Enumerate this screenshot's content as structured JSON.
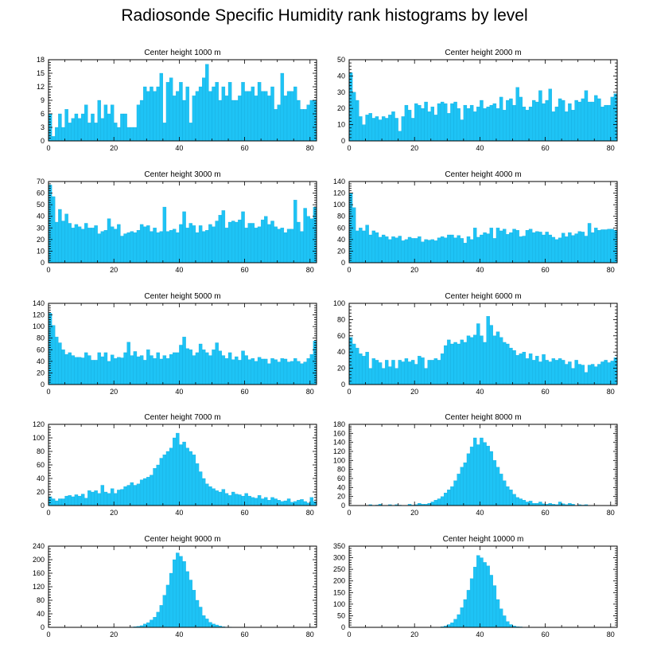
{
  "page": {
    "title": "Radiosonde Specific Humidity rank histograms by level"
  },
  "colors": {
    "bar": "#1ec3f5",
    "bar_stroke": "#0fa6d8",
    "axis": "#000000"
  },
  "chart_data": [
    {
      "type": "bar",
      "title": "Center height 1000 m",
      "xlim": [
        0,
        82
      ],
      "ylim": [
        0,
        18
      ],
      "yticks": [
        0,
        3,
        6,
        9,
        12,
        15,
        18
      ],
      "xticks": [
        0,
        20,
        40,
        60,
        80
      ],
      "values": [
        6,
        1,
        3,
        6,
        3,
        7,
        4,
        5,
        6,
        5,
        6,
        8,
        4,
        6,
        4,
        9,
        5,
        8,
        6,
        8,
        4,
        3,
        6,
        6,
        3,
        3,
        3,
        8,
        9,
        12,
        11,
        12,
        11,
        12,
        15,
        4,
        13,
        14,
        10,
        11,
        13,
        9,
        12,
        4,
        10,
        11,
        12,
        14,
        17,
        11,
        12,
        13,
        9,
        12,
        10,
        13,
        9,
        9,
        10,
        13,
        11,
        11,
        12,
        10,
        13,
        11,
        11,
        10,
        12,
        7,
        8,
        15,
        10,
        11,
        11,
        12,
        9,
        7,
        7,
        8,
        9,
        9
      ]
    },
    {
      "type": "bar",
      "title": "Center height 2000 m",
      "xlim": [
        0,
        82
      ],
      "ylim": [
        0,
        50
      ],
      "yticks": [
        0,
        10,
        20,
        30,
        40,
        50
      ],
      "xticks": [
        0,
        20,
        40,
        60,
        80
      ],
      "values": [
        42,
        30,
        25,
        15,
        10,
        16,
        17,
        14,
        15,
        13,
        15,
        14,
        16,
        18,
        14,
        6,
        15,
        22,
        19,
        14,
        23,
        22,
        20,
        24,
        18,
        21,
        16,
        23,
        24,
        23,
        17,
        23,
        24,
        20,
        13,
        22,
        20,
        22,
        18,
        21,
        25,
        20,
        21,
        22,
        23,
        20,
        27,
        19,
        25,
        26,
        22,
        33,
        27,
        21,
        19,
        21,
        25,
        24,
        31,
        23,
        25,
        32,
        18,
        21,
        26,
        25,
        18,
        23,
        19,
        25,
        24,
        26,
        31,
        24,
        24,
        28,
        26,
        21,
        22,
        22,
        27,
        29
      ]
    },
    {
      "type": "bar",
      "title": "Center height 3000 m",
      "xlim": [
        0,
        82
      ],
      "ylim": [
        0,
        70
      ],
      "yticks": [
        0,
        10,
        20,
        30,
        40,
        50,
        60,
        70
      ],
      "xticks": [
        0,
        20,
        40,
        60,
        80
      ],
      "values": [
        67,
        57,
        35,
        46,
        36,
        42,
        34,
        30,
        33,
        31,
        29,
        34,
        30,
        30,
        32,
        25,
        27,
        28,
        38,
        31,
        29,
        33,
        23,
        25,
        26,
        27,
        26,
        28,
        33,
        31,
        32,
        27,
        30,
        26,
        27,
        48,
        27,
        28,
        29,
        26,
        33,
        44,
        30,
        34,
        32,
        26,
        32,
        27,
        28,
        33,
        31,
        36,
        41,
        45,
        30,
        35,
        36,
        35,
        37,
        44,
        30,
        34,
        34,
        30,
        31,
        37,
        40,
        33,
        36,
        31,
        29,
        30,
        26,
        29,
        29,
        54,
        35,
        27,
        47,
        40,
        38,
        48
      ]
    },
    {
      "type": "bar",
      "title": "Center height 4000 m",
      "xlim": [
        0,
        82
      ],
      "ylim": [
        0,
        140
      ],
      "yticks": [
        0,
        20,
        40,
        60,
        80,
        100,
        120,
        140
      ],
      "xticks": [
        0,
        20,
        40,
        60,
        80
      ],
      "values": [
        120,
        95,
        55,
        60,
        55,
        65,
        48,
        55,
        52,
        44,
        48,
        45,
        40,
        45,
        43,
        46,
        38,
        40,
        44,
        42,
        42,
        45,
        36,
        40,
        39,
        40,
        38,
        43,
        45,
        43,
        48,
        48,
        43,
        47,
        42,
        34,
        45,
        40,
        60,
        44,
        48,
        52,
        50,
        60,
        42,
        60,
        55,
        58,
        49,
        52,
        58,
        56,
        45,
        46,
        56,
        58,
        52,
        54,
        53,
        48,
        53,
        48,
        44,
        40,
        43,
        51,
        45,
        52,
        47,
        50,
        54,
        53,
        46,
        68,
        52,
        60,
        56,
        57,
        57,
        58,
        58,
        56
      ]
    },
    {
      "type": "bar",
      "title": "Center height 5000 m",
      "xlim": [
        0,
        82
      ],
      "ylim": [
        0,
        140
      ],
      "yticks": [
        0,
        20,
        40,
        60,
        80,
        100,
        120,
        140
      ],
      "xticks": [
        0,
        20,
        40,
        60,
        80
      ],
      "values": [
        123,
        102,
        82,
        72,
        60,
        52,
        55,
        50,
        47,
        47,
        46,
        55,
        50,
        42,
        42,
        55,
        48,
        55,
        40,
        51,
        45,
        47,
        46,
        55,
        73,
        50,
        57,
        48,
        50,
        42,
        60,
        50,
        45,
        55,
        44,
        50,
        45,
        52,
        55,
        55,
        68,
        82,
        62,
        60,
        50,
        55,
        70,
        60,
        55,
        50,
        60,
        72,
        58,
        50,
        45,
        55,
        43,
        48,
        42,
        58,
        50,
        43,
        45,
        40,
        47,
        44,
        44,
        36,
        45,
        43,
        39,
        45,
        44,
        39,
        40,
        45,
        40,
        36,
        39,
        45,
        52,
        75
      ]
    },
    {
      "type": "bar",
      "title": "Center height 6000 m",
      "xlim": [
        0,
        82
      ],
      "ylim": [
        0,
        100
      ],
      "yticks": [
        0,
        20,
        40,
        60,
        80,
        100
      ],
      "xticks": [
        0,
        20,
        40,
        60,
        80
      ],
      "values": [
        58,
        50,
        45,
        38,
        35,
        40,
        20,
        32,
        30,
        27,
        20,
        30,
        22,
        30,
        20,
        30,
        28,
        32,
        28,
        30,
        25,
        35,
        33,
        20,
        30,
        30,
        32,
        30,
        38,
        48,
        55,
        50,
        52,
        50,
        55,
        52,
        60,
        58,
        61,
        75,
        60,
        52,
        84,
        73,
        60,
        65,
        58,
        52,
        50,
        45,
        42,
        36,
        38,
        40,
        32,
        38,
        30,
        35,
        28,
        37,
        30,
        28,
        32,
        30,
        32,
        30,
        25,
        28,
        20,
        30,
        25,
        24,
        15,
        24,
        25,
        22,
        25,
        28,
        30,
        27,
        29,
        33
      ]
    },
    {
      "type": "bar",
      "title": "Center height 7000 m",
      "xlim": [
        0,
        82
      ],
      "ylim": [
        0,
        120
      ],
      "yticks": [
        0,
        20,
        40,
        60,
        80,
        100,
        120
      ],
      "xticks": [
        0,
        20,
        40,
        60,
        80
      ],
      "values": [
        13,
        10,
        7,
        10,
        10,
        14,
        15,
        13,
        16,
        14,
        17,
        11,
        22,
        20,
        22,
        18,
        30,
        20,
        18,
        25,
        18,
        23,
        24,
        28,
        30,
        34,
        30,
        32,
        38,
        40,
        42,
        45,
        55,
        60,
        70,
        75,
        80,
        85,
        100,
        107,
        90,
        94,
        85,
        80,
        75,
        62,
        50,
        40,
        32,
        28,
        25,
        22,
        20,
        24,
        18,
        15,
        20,
        17,
        16,
        14,
        18,
        14,
        12,
        11,
        15,
        10,
        12,
        8,
        12,
        10,
        8,
        6,
        7,
        10,
        5,
        6,
        8,
        9,
        6,
        4,
        12,
        6
      ]
    },
    {
      "type": "bar",
      "title": "Center height 8000 m",
      "xlim": [
        0,
        82
      ],
      "ylim": [
        0,
        180
      ],
      "yticks": [
        0,
        20,
        40,
        60,
        80,
        100,
        120,
        140,
        160,
        180
      ],
      "xticks": [
        0,
        20,
        40,
        60,
        80
      ],
      "values": [
        0,
        0,
        0,
        0,
        0,
        0,
        2,
        0,
        1,
        3,
        0,
        0,
        2,
        0,
        2,
        1,
        0,
        0,
        3,
        1,
        2,
        5,
        3,
        3,
        5,
        8,
        12,
        15,
        20,
        28,
        35,
        42,
        55,
        70,
        85,
        95,
        115,
        130,
        150,
        135,
        150,
        140,
        132,
        120,
        100,
        85,
        70,
        55,
        42,
        35,
        25,
        18,
        15,
        12,
        8,
        10,
        5,
        5,
        8,
        4,
        3,
        5,
        3,
        2,
        8,
        4,
        2,
        5,
        3,
        0,
        2,
        1,
        2,
        0,
        0,
        0,
        0,
        0,
        0,
        0,
        0,
        0
      ]
    },
    {
      "type": "bar",
      "title": "Center height 9000 m",
      "xlim": [
        0,
        82
      ],
      "ylim": [
        0,
        240
      ],
      "yticks": [
        0,
        40,
        80,
        120,
        160,
        200,
        240
      ],
      "xticks": [
        0,
        20,
        40,
        60,
        80
      ],
      "values": [
        0,
        0,
        0,
        0,
        0,
        0,
        0,
        0,
        0,
        0,
        0,
        0,
        0,
        0,
        0,
        0,
        0,
        0,
        0,
        0,
        0,
        0,
        0,
        0,
        0,
        1,
        2,
        3,
        5,
        10,
        14,
        22,
        30,
        45,
        65,
        95,
        125,
        160,
        200,
        220,
        210,
        195,
        165,
        140,
        110,
        80,
        60,
        35,
        25,
        15,
        10,
        7,
        4,
        2,
        1,
        1,
        0,
        0,
        0,
        0,
        0,
        0,
        0,
        0,
        0,
        0,
        0,
        0,
        0,
        0,
        0,
        0,
        0,
        0,
        0,
        0,
        0,
        0,
        0,
        0,
        0,
        0
      ]
    },
    {
      "type": "bar",
      "title": "Center height 10000 m",
      "xlim": [
        0,
        82
      ],
      "ylim": [
        0,
        350
      ],
      "yticks": [
        0,
        50,
        100,
        150,
        200,
        250,
        300,
        350
      ],
      "xticks": [
        0,
        20,
        40,
        60,
        80
      ],
      "values": [
        0,
        0,
        0,
        0,
        0,
        0,
        0,
        0,
        0,
        0,
        0,
        0,
        0,
        0,
        0,
        0,
        0,
        0,
        0,
        0,
        0,
        0,
        0,
        0,
        0,
        0,
        0,
        1,
        3,
        6,
        12,
        20,
        35,
        55,
        85,
        120,
        160,
        210,
        260,
        310,
        300,
        280,
        265,
        225,
        180,
        120,
        80,
        50,
        25,
        12,
        6,
        3,
        2,
        1,
        1,
        0,
        0,
        0,
        0,
        0,
        0,
        0,
        0,
        0,
        0,
        0,
        0,
        0,
        0,
        0,
        0,
        0,
        0,
        0,
        0,
        0,
        0,
        0,
        0,
        0,
        0,
        0
      ]
    }
  ]
}
